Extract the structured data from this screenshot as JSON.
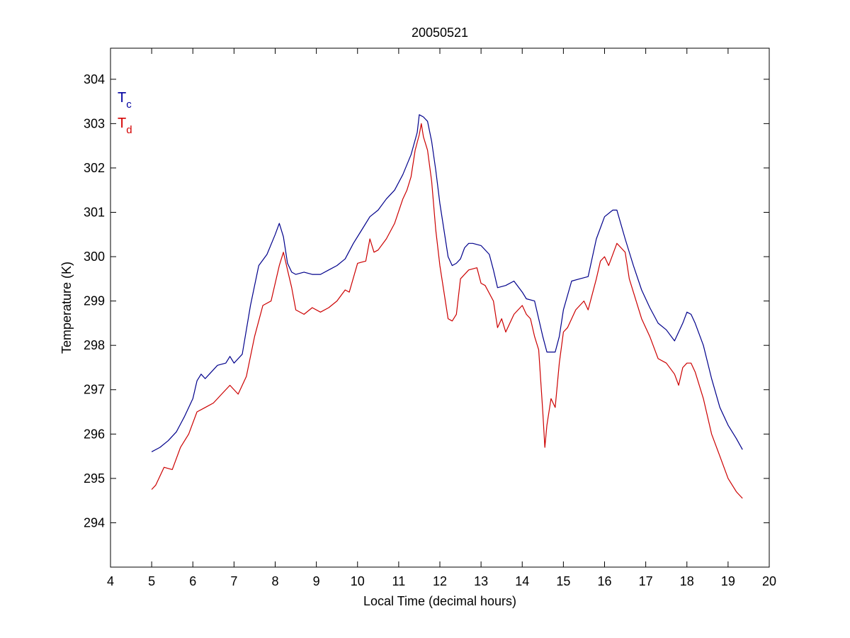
{
  "chart_data": {
    "type": "line",
    "title": "20050521",
    "xlabel": "Local Time (decimal hours)",
    "ylabel": "Temperature (K)",
    "xlim": [
      4,
      20
    ],
    "ylim": [
      293,
      304.7
    ],
    "xticks": [
      "4",
      "5",
      "6",
      "7",
      "8",
      "9",
      "10",
      "11",
      "12",
      "13",
      "14",
      "15",
      "16",
      "17",
      "18",
      "19",
      "20"
    ],
    "yticks": [
      "294",
      "295",
      "296",
      "297",
      "298",
      "299",
      "300",
      "301",
      "302",
      "303",
      "304"
    ],
    "grid": false,
    "legend": {
      "placement": "top-left",
      "entries": [
        {
          "main": "T",
          "sub": "c",
          "color": "#0000a0"
        },
        {
          "main": "T",
          "sub": "d",
          "color": "#d40000"
        }
      ]
    },
    "series": [
      {
        "color": "#00008b",
        "x": [
          5.0,
          5.2,
          5.4,
          5.6,
          5.8,
          6.0,
          6.1,
          6.2,
          6.3,
          6.4,
          6.6,
          6.8,
          6.9,
          7.0,
          7.2,
          7.4,
          7.6,
          7.8,
          8.0,
          8.1,
          8.2,
          8.3,
          8.4,
          8.5,
          8.7,
          8.9,
          9.1,
          9.3,
          9.5,
          9.7,
          9.9,
          10.1,
          10.3,
          10.5,
          10.7,
          10.9,
          11.1,
          11.3,
          11.45,
          11.5,
          11.6,
          11.7,
          11.8,
          11.9,
          12.0,
          12.1,
          12.2,
          12.3,
          12.4,
          12.5,
          12.6,
          12.7,
          12.8,
          13.0,
          13.2,
          13.3,
          13.4,
          13.6,
          13.8,
          14.0,
          14.1,
          14.3,
          14.5,
          14.6,
          14.8,
          14.9,
          15.0,
          15.2,
          15.4,
          15.6,
          15.8,
          16.0,
          16.2,
          16.3,
          16.5,
          16.7,
          16.9,
          17.1,
          17.3,
          17.5,
          17.7,
          17.9,
          18.0,
          18.1,
          18.2,
          18.4,
          18.6,
          18.8,
          19.0,
          19.2,
          19.35
        ],
        "y": [
          295.6,
          295.7,
          295.85,
          296.05,
          296.4,
          296.8,
          297.2,
          297.35,
          297.25,
          297.35,
          297.55,
          297.6,
          297.75,
          297.6,
          297.8,
          298.9,
          299.8,
          300.05,
          300.5,
          300.75,
          300.45,
          299.85,
          299.65,
          299.6,
          299.65,
          299.6,
          299.6,
          299.7,
          299.8,
          299.95,
          300.3,
          300.6,
          300.9,
          301.05,
          301.3,
          301.5,
          301.85,
          302.3,
          302.8,
          303.2,
          303.15,
          303.05,
          302.6,
          301.95,
          301.2,
          300.6,
          300.0,
          299.8,
          299.85,
          299.95,
          300.2,
          300.3,
          300.3,
          300.25,
          300.05,
          299.7,
          299.3,
          299.35,
          299.45,
          299.2,
          299.05,
          299.0,
          298.2,
          297.85,
          297.85,
          298.2,
          298.8,
          299.45,
          299.5,
          299.55,
          300.4,
          300.9,
          301.05,
          301.05,
          300.4,
          299.8,
          299.25,
          298.85,
          298.5,
          298.35,
          298.1,
          298.5,
          298.75,
          298.7,
          298.5,
          298.0,
          297.25,
          296.6,
          296.2,
          295.9,
          295.65
        ]
      },
      {
        "color": "#cc0000",
        "x": [
          5.0,
          5.1,
          5.3,
          5.5,
          5.7,
          5.9,
          6.1,
          6.3,
          6.5,
          6.7,
          6.9,
          7.1,
          7.3,
          7.5,
          7.7,
          7.9,
          8.1,
          8.2,
          8.3,
          8.4,
          8.5,
          8.7,
          8.9,
          9.1,
          9.3,
          9.5,
          9.7,
          9.8,
          10.0,
          10.2,
          10.3,
          10.4,
          10.5,
          10.7,
          10.9,
          11.1,
          11.2,
          11.3,
          11.4,
          11.5,
          11.55,
          11.6,
          11.7,
          11.8,
          11.9,
          12.0,
          12.1,
          12.2,
          12.3,
          12.4,
          12.5,
          12.7,
          12.9,
          13.0,
          13.1,
          13.3,
          13.4,
          13.5,
          13.6,
          13.8,
          14.0,
          14.1,
          14.2,
          14.3,
          14.4,
          14.5,
          14.55,
          14.6,
          14.7,
          14.8,
          14.9,
          15.0,
          15.1,
          15.3,
          15.5,
          15.6,
          15.8,
          15.9,
          16.0,
          16.1,
          16.3,
          16.4,
          16.5,
          16.6,
          16.7,
          16.9,
          17.1,
          17.3,
          17.5,
          17.7,
          17.8,
          17.9,
          18.0,
          18.1,
          18.2,
          18.4,
          18.6,
          18.8,
          19.0,
          19.2,
          19.35
        ],
        "y": [
          294.75,
          294.85,
          295.25,
          295.2,
          295.7,
          296.0,
          296.5,
          296.6,
          296.7,
          296.9,
          297.1,
          296.9,
          297.3,
          298.2,
          298.9,
          299.0,
          299.8,
          300.1,
          299.7,
          299.3,
          298.8,
          298.7,
          298.85,
          298.75,
          298.85,
          299.0,
          299.25,
          299.2,
          299.85,
          299.9,
          300.4,
          300.1,
          300.15,
          300.4,
          300.75,
          301.3,
          301.5,
          301.8,
          302.4,
          302.75,
          303.0,
          302.7,
          302.4,
          301.7,
          300.6,
          299.8,
          299.2,
          298.6,
          298.55,
          298.7,
          299.5,
          299.7,
          299.75,
          299.4,
          299.35,
          299.0,
          298.4,
          298.6,
          298.3,
          298.7,
          298.9,
          298.7,
          298.6,
          298.2,
          297.9,
          296.5,
          295.7,
          296.2,
          296.8,
          296.6,
          297.6,
          298.3,
          298.4,
          298.8,
          299.0,
          298.8,
          299.5,
          299.9,
          300.0,
          299.8,
          300.3,
          300.2,
          300.1,
          299.5,
          299.2,
          298.6,
          298.2,
          297.7,
          297.6,
          297.35,
          297.1,
          297.5,
          297.6,
          297.6,
          297.4,
          296.8,
          296.0,
          295.5,
          295.0,
          294.7,
          294.55
        ]
      }
    ]
  }
}
